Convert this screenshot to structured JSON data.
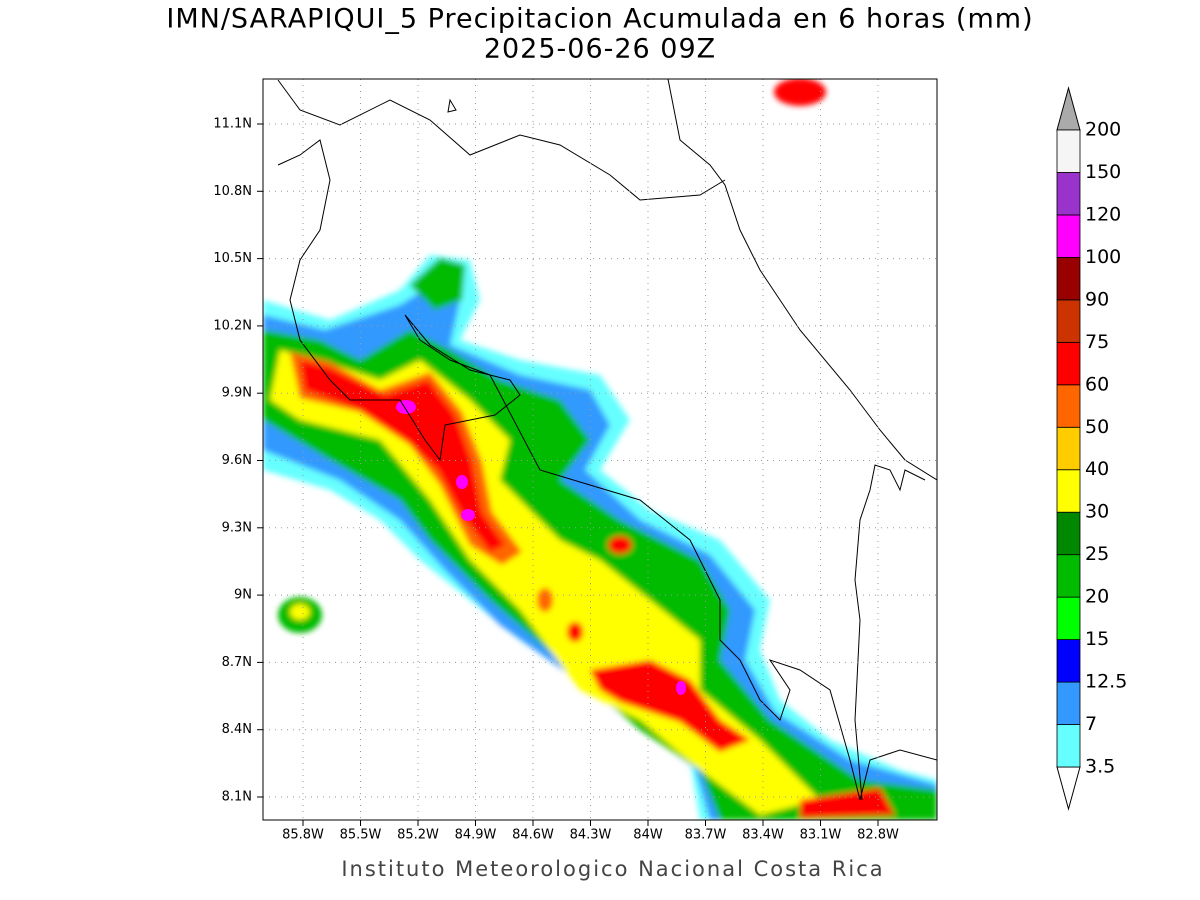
{
  "title": [
    "IMN/SARAPIQUI_5 Precipitacion Acumulada en 6 horas (mm)",
    "2025-06-26 09Z"
  ],
  "map": {
    "lat_ticks": [
      "11.1N",
      "10.8N",
      "10.5N",
      "10.2N",
      "9.9N",
      "9.6N",
      "9.3N",
      "9N",
      "8.7N",
      "8.4N",
      "8.1N"
    ],
    "lon_ticks": [
      "85.8W",
      "85.5W",
      "85.2W",
      "84.9W",
      "84.6W",
      "84.3W",
      "84W",
      "83.7W",
      "83.4W",
      "83.1W",
      "82.8W"
    ]
  },
  "colorbar": {
    "labels": [
      "3.5",
      "7",
      "12.5",
      "15",
      "20",
      "25",
      "30",
      "40",
      "50",
      "60",
      "75",
      "90",
      "100",
      "120",
      "150",
      "200"
    ],
    "colors": [
      "#66ffff",
      "#3399ff",
      "#0000ff",
      "#00ff00",
      "#00bb00",
      "#008800",
      "#ffff00",
      "#ffcc00",
      "#ff6600",
      "#ff0000",
      "#cc3300",
      "#990000",
      "#ff00ff",
      "#9933cc",
      "#f5f5f5"
    ]
  },
  "footer": "Instituto Meteorologico Nacional Costa Rica"
}
